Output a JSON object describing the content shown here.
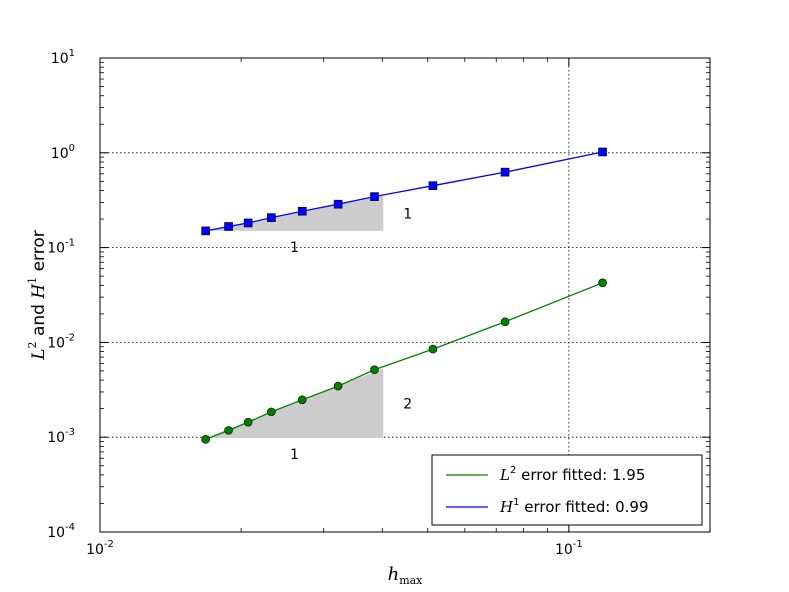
{
  "chart_data": {
    "type": "line",
    "title": "",
    "xlabel": {
      "base": "h",
      "sub": "max"
    },
    "ylabel": {
      "l": "L",
      "l_exp": "2",
      "and": " and ",
      "h": "H",
      "h_exp": "1",
      "tail": " error"
    },
    "x_scale": "log",
    "y_scale": "log",
    "xlim": [
      0.01,
      0.2
    ],
    "ylim": [
      0.0001,
      10
    ],
    "grid": true,
    "x_ticks": [
      {
        "value": 0.01,
        "base": "10",
        "exp": "-2"
      },
      {
        "value": 0.1,
        "base": "10",
        "exp": "-1"
      }
    ],
    "y_ticks": [
      {
        "value": 0.0001,
        "base": "10",
        "exp": "-4"
      },
      {
        "value": 0.001,
        "base": "10",
        "exp": "-3"
      },
      {
        "value": 0.01,
        "base": "10",
        "exp": "-2"
      },
      {
        "value": 0.1,
        "base": "10",
        "exp": "-1"
      },
      {
        "value": 1,
        "base": "10",
        "exp": "0"
      },
      {
        "value": 10,
        "base": "10",
        "exp": "1"
      }
    ],
    "series": [
      {
        "key": "l2",
        "legend": {
          "sym": "L",
          "exp": "2",
          "text": "  error fitted: 1.95"
        },
        "color": "#008000",
        "marker": "circle",
        "x": [
          0.0168,
          0.0188,
          0.0207,
          0.0232,
          0.027,
          0.0322,
          0.0385,
          0.0513,
          0.0731,
          0.118
        ],
        "y": [
          0.00095,
          0.00118,
          0.00144,
          0.00185,
          0.00248,
          0.00346,
          0.00515,
          0.0085,
          0.0165,
          0.0425
        ]
      },
      {
        "key": "h1",
        "legend": {
          "sym": "H",
          "exp": "1",
          "text": "  error fitted: 0.99"
        },
        "color": "#0000ff",
        "marker": "square",
        "x": [
          0.0168,
          0.0188,
          0.0207,
          0.0232,
          0.027,
          0.0322,
          0.0385,
          0.0513,
          0.0731,
          0.118
        ],
        "y": [
          0.15,
          0.167,
          0.182,
          0.207,
          0.242,
          0.287,
          0.345,
          0.45,
          0.625,
          1.02
        ]
      }
    ],
    "slope_triangles": [
      {
        "x0": 0.0168,
        "x1": 0.0402,
        "y_base": 0.00098,
        "y_top": 0.0053,
        "run_label": "1",
        "rise_label": "2"
      },
      {
        "x0": 0.0168,
        "x1": 0.0402,
        "y_base": 0.15,
        "y_top": 0.35,
        "run_label": "1",
        "rise_label": "1"
      }
    ],
    "legend_position": "lower-right",
    "colors": {
      "fill": "#cccccc",
      "axis": "#000000"
    }
  }
}
